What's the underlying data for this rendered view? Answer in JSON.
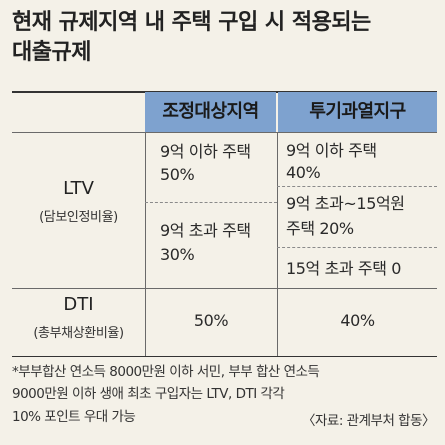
{
  "title": {
    "line1": "현재 규제지역 내 주택 구입 시 적용되는",
    "line2": "대출규제"
  },
  "table": {
    "header": {
      "col1": "조정대상지역",
      "col2": "투기과열지구"
    },
    "ltv": {
      "label": "LTV",
      "sublabel": "(담보인정비율)",
      "adjusted": {
        "cell1_line1": "9억 이하 주택",
        "cell1_line2": "50%",
        "cell2_line1": "9억 초과 주택",
        "cell2_line2": "30%"
      },
      "speculative": {
        "cell1_line1": "9억 이하 주택",
        "cell1_line2": "40%",
        "cell2_line1": "9억 초과~15억원",
        "cell2_line2": "주택 20%",
        "cell3": "15억 초과 주택 0"
      }
    },
    "dti": {
      "label": "DTI",
      "sublabel": "(총부채상환비율)",
      "adjusted": "50%",
      "speculative": "40%"
    }
  },
  "footnote": {
    "line1": "*부부합산 연소득 8000만원 이하 서민, 부부 합산 연소득",
    "line2": "9000만원 이하 생애 최초 구입자는 LTV, DTI 각각",
    "line3": "10% 포인트 우대 가능"
  },
  "source": "〈자료: 관계부처 합동〉",
  "colors": {
    "background": "#f4f1e8",
    "header_fill": "#7ea2cf"
  }
}
